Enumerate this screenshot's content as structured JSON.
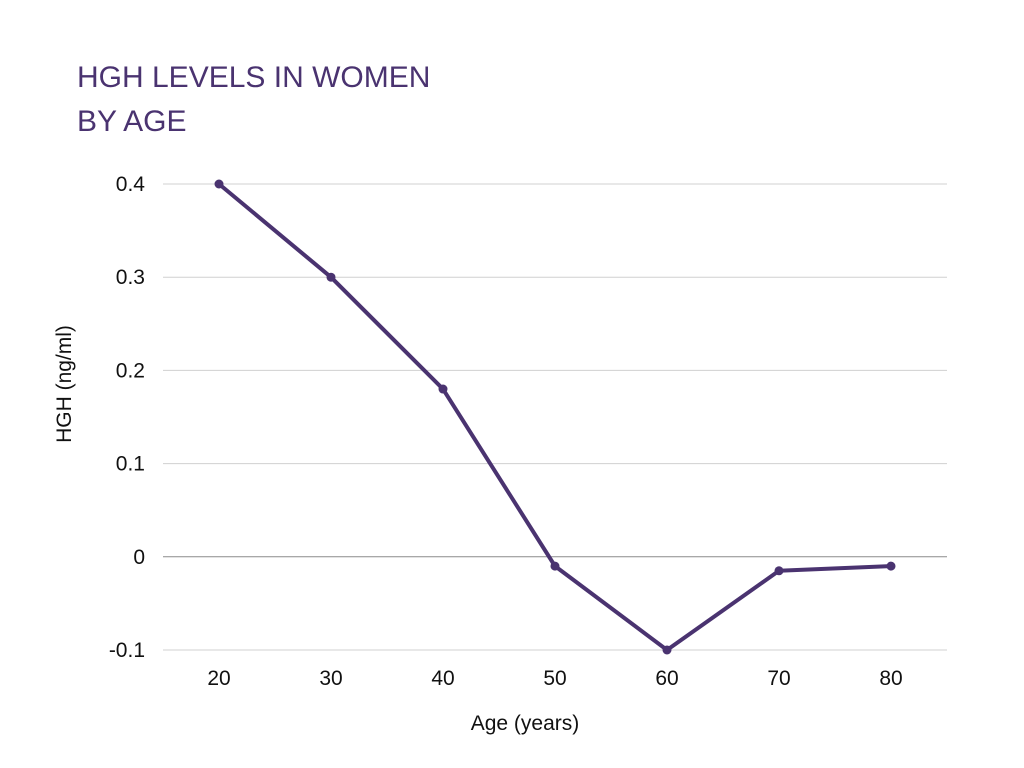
{
  "chart_data": {
    "type": "line",
    "title_lines": [
      "HGH LEVELS IN WOMEN",
      "BY AGE"
    ],
    "xlabel": "Age (years)",
    "ylabel": "HGH (ng/ml)",
    "x": [
      20,
      30,
      40,
      50,
      60,
      70,
      80
    ],
    "series": [
      {
        "values": [
          0.4,
          0.3,
          0.18,
          -0.01,
          -0.1,
          -0.015,
          -0.01
        ]
      }
    ],
    "ylim": [
      -0.1,
      0.4
    ],
    "yticks": [
      0.4,
      0.3,
      0.2,
      0.1,
      0,
      -0.1
    ],
    "ytick_labels": [
      "0.4",
      "0.3",
      "0.2",
      "0.1",
      "0",
      "-0.1"
    ],
    "xtick_labels": [
      "20",
      "30",
      "40",
      "50",
      "60",
      "70",
      "80"
    ],
    "grid": true,
    "legend": "none",
    "colors": {
      "title": "#4a3370",
      "line": "#4a3370",
      "grid": "#d0d0d0",
      "zero_line": "#8c8c8c",
      "text": "#111111"
    }
  }
}
